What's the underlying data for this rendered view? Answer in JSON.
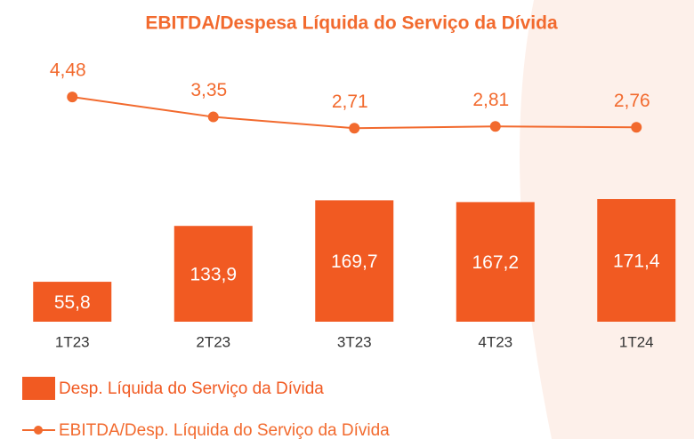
{
  "chart_data": {
    "type": "bar_line",
    "title": "EBITDA/Despesa Líquida do Serviço da Dívida",
    "categories": [
      "1T23",
      "2T23",
      "3T23",
      "4T23",
      "1T24"
    ],
    "series": [
      {
        "name": "Desp. Líquida do Serviço da Dívida",
        "type": "bar",
        "color": "#f15a22",
        "values": [
          55.8,
          133.9,
          169.7,
          167.2,
          171.4
        ],
        "value_labels": [
          "55,8",
          "133,9",
          "169,7",
          "167,2",
          "171,4"
        ]
      },
      {
        "name": "EBITDA/Desp. Líquida do Serviço da Dívida",
        "type": "line",
        "axis": "y2",
        "color": "#f26a2e",
        "values": [
          4.48,
          3.35,
          2.71,
          2.81,
          2.76
        ],
        "value_labels": [
          "4,48",
          "3,35",
          "2,71",
          "2,81",
          "2,76"
        ]
      }
    ],
    "ylim": [
      0,
      200
    ],
    "y2lim": [
      0,
      6
    ]
  }
}
